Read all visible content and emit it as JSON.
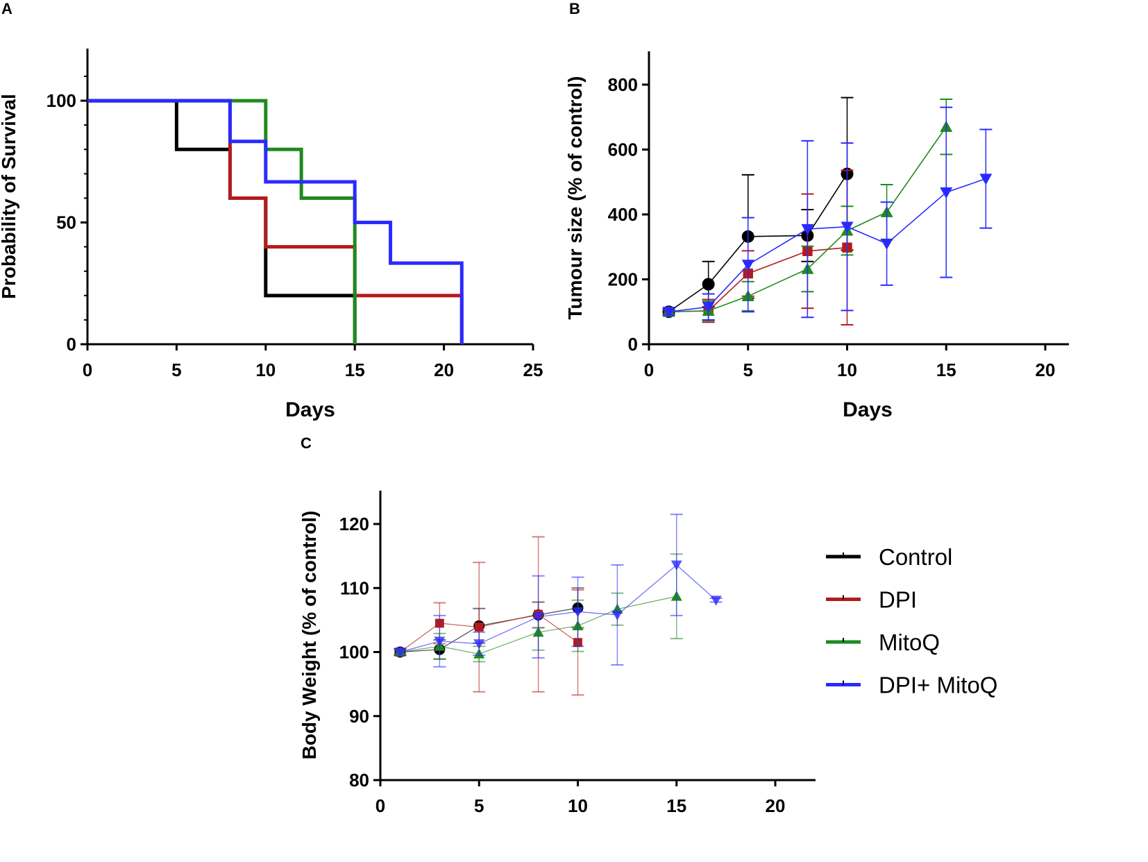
{
  "colors": {
    "Control": "#000000",
    "DPI": "#b31b1b",
    "MitoQ": "#1f8a1f",
    "DPI+ MitoQ": "#2a2aff"
  },
  "legend": [
    "Control",
    "DPI",
    "MitoQ",
    "DPI+ MitoQ"
  ],
  "chart_data": [
    {
      "panel": "A",
      "type": "line",
      "step": true,
      "xlabel": "Days",
      "ylabel": "Probability of Survival",
      "xlim": [
        0,
        25
      ],
      "ylim": [
        0,
        110
      ],
      "xticks": [
        0,
        5,
        10,
        15,
        20,
        25
      ],
      "yticks": [
        0,
        50,
        100
      ],
      "series": [
        {
          "name": "Control",
          "x": [
            0,
            5,
            8,
            10,
            15
          ],
          "y": [
            100,
            80,
            60,
            20,
            0
          ]
        },
        {
          "name": "DPI",
          "x": [
            0,
            8,
            10,
            15,
            21
          ],
          "y": [
            100,
            60,
            40,
            20,
            0
          ]
        },
        {
          "name": "MitoQ",
          "x": [
            0,
            10,
            12,
            15
          ],
          "y": [
            100,
            80,
            60,
            0
          ]
        },
        {
          "name": "DPI+ MitoQ",
          "x": [
            0,
            8,
            10,
            15,
            17,
            21
          ],
          "y": [
            100,
            83.3,
            66.7,
            50,
            33.3,
            0
          ]
        }
      ]
    },
    {
      "panel": "B",
      "type": "line",
      "xlabel": "Days",
      "ylabel": "Tumour size (% of  control)",
      "xlim": [
        0,
        22
      ],
      "ylim": [
        0,
        900
      ],
      "xticks": [
        0,
        5,
        10,
        15,
        20
      ],
      "yticks": [
        0,
        200,
        400,
        600,
        800
      ],
      "series": [
        {
          "name": "Control",
          "marker": "circle",
          "x": [
            1,
            3,
            5,
            8,
            10
          ],
          "y": [
            100,
            185,
            332,
            335,
            525
          ],
          "err": [
            10,
            70,
            190,
            80,
            235
          ]
        },
        {
          "name": "DPI",
          "marker": "square",
          "x": [
            1,
            3,
            5,
            8,
            10
          ],
          "y": [
            100,
            103,
            218,
            287,
            298
          ],
          "err": [
            8,
            35,
            70,
            176,
            238
          ]
        },
        {
          "name": "MitoQ",
          "marker": "triangle-up",
          "x": [
            1,
            3,
            5,
            8,
            10,
            12,
            15
          ],
          "y": [
            100,
            103,
            148,
            232,
            350,
            407,
            670
          ],
          "err": [
            8,
            30,
            45,
            70,
            75,
            85,
            85
          ]
        },
        {
          "name": "DPI+ MitoQ",
          "marker": "triangle-down",
          "x": [
            1,
            3,
            5,
            8,
            10,
            12,
            15,
            17
          ],
          "y": [
            100,
            115,
            245,
            355,
            362,
            310,
            468,
            510
          ],
          "err": [
            10,
            40,
            145,
            272,
            258,
            128,
            262,
            152
          ]
        }
      ]
    },
    {
      "panel": "C",
      "type": "line",
      "xlabel": "",
      "ylabel": "Body  Weight (% of  control)",
      "xlim": [
        0,
        22
      ],
      "ylim": [
        80,
        125
      ],
      "xticks": [
        0,
        5,
        10,
        15,
        20
      ],
      "yticks": [
        80,
        90,
        100,
        110,
        120
      ],
      "series": [
        {
          "name": "Control",
          "marker": "circle",
          "x": [
            1,
            3,
            5,
            8,
            10
          ],
          "y": [
            100,
            100.4,
            104.1,
            105.8,
            106.9
          ],
          "err": [
            0.5,
            1.5,
            2.7,
            2,
            3.1
          ]
        },
        {
          "name": "DPI",
          "marker": "square",
          "x": [
            1,
            3,
            5,
            8,
            10
          ],
          "y": [
            100,
            104.5,
            103.9,
            105.9,
            101.5
          ],
          "err": [
            0.5,
            3.2,
            10.1,
            12.1,
            8.2
          ]
        },
        {
          "name": "MitoQ",
          "marker": "triangle-up",
          "x": [
            1,
            3,
            5,
            8,
            10,
            12,
            15
          ],
          "y": [
            100,
            100.9,
            99.7,
            103.1,
            104.1,
            106.7,
            108.7
          ],
          "err": [
            0.3,
            2,
            1.2,
            2.8,
            4,
            2.5,
            6.6
          ]
        },
        {
          "name": "DPI+ MitoQ",
          "marker": "triangle-down",
          "x": [
            1,
            3,
            5,
            8,
            10,
            12,
            15,
            17
          ],
          "y": [
            100,
            101.7,
            101.3,
            105.5,
            106.3,
            105.8,
            113.6,
            108.1
          ],
          "err": [
            0.5,
            4,
            1.8,
            6.4,
            5.4,
            7.8,
            7.9,
            0.3
          ]
        }
      ]
    }
  ]
}
